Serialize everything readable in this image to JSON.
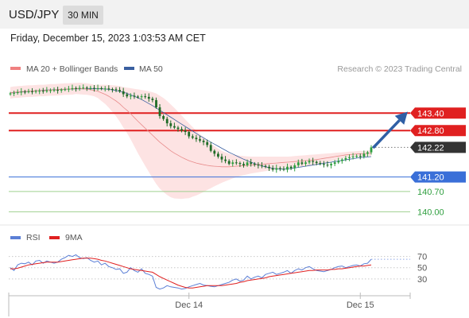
{
  "header": {
    "symbol": "USD/JPY",
    "timeframe": "30 MIN"
  },
  "datetime": "Friday, December 15, 2023 1:03:53 AM CET",
  "legend_main": [
    {
      "label": "MA 20 + Bollinger Bands",
      "color": "#f08080"
    },
    {
      "label": "MA 50",
      "color": "#3a5fa0"
    }
  ],
  "copyright": "Research © 2023 Trading Central",
  "legend_rsi": [
    {
      "label": "RSI",
      "color": "#5b7fd6"
    },
    {
      "label": "9MA",
      "color": "#e02020"
    }
  ],
  "colors": {
    "up": "#2e9e3e",
    "down": "#1e6b26",
    "resistance": "#e02020",
    "support": "#3a6fd8",
    "target": "#2e9e3e",
    "arrow": "#2f5fa5",
    "current": "#333333"
  },
  "chart_data": {
    "type": "candlestick",
    "ylim": [
      139.9,
      144.45
    ],
    "n_bars": 100,
    "x_ticks": [
      {
        "label": "Dec 14",
        "bar": 49
      },
      {
        "label": "Dec 15",
        "bar": 96
      }
    ],
    "levels": [
      {
        "value": 143.4,
        "label": "143.40",
        "kind": "resistance"
      },
      {
        "value": 142.8,
        "label": "142.80",
        "kind": "resistance"
      },
      {
        "value": 142.22,
        "label": "142.22",
        "kind": "current"
      },
      {
        "value": 141.2,
        "label": "141.20",
        "kind": "support"
      },
      {
        "value": 140.7,
        "label": "140.70",
        "kind": "target"
      },
      {
        "value": 140.0,
        "label": "140.00",
        "kind": "target"
      }
    ],
    "arrow": {
      "from": [
        99.5,
        142.2
      ],
      "to": [
        109,
        143.45
      ]
    },
    "close": [
      144.08,
      144.1,
      144.12,
      144.14,
      144.13,
      144.15,
      144.14,
      144.16,
      144.17,
      144.15,
      144.18,
      144.19,
      144.2,
      144.18,
      144.21,
      144.22,
      144.24,
      144.26,
      144.25,
      144.27,
      144.28,
      144.26,
      144.27,
      144.25,
      144.26,
      144.24,
      144.25,
      144.23,
      144.22,
      144.2,
      144.15,
      144.05,
      143.98,
      144.0,
      143.97,
      143.95,
      143.98,
      143.96,
      143.9,
      143.85,
      143.6,
      143.3,
      143.2,
      143.05,
      142.95,
      142.9,
      142.85,
      142.8,
      142.75,
      142.6,
      142.55,
      142.5,
      142.45,
      142.4,
      142.3,
      142.1,
      142.0,
      141.9,
      141.8,
      141.75,
      141.65,
      141.7,
      141.68,
      141.65,
      141.6,
      141.7,
      141.65,
      141.62,
      141.6,
      141.58,
      141.55,
      141.5,
      141.45,
      141.5,
      141.48,
      141.45,
      141.55,
      141.5,
      141.6,
      141.7,
      141.65,
      141.7,
      141.75,
      141.72,
      141.68,
      141.65,
      141.62,
      141.6,
      141.65,
      141.7,
      141.75,
      141.8,
      141.85,
      141.88,
      141.9,
      141.92,
      141.9,
      142.0,
      142.05,
      142.22
    ],
    "ma20": [
      144.1,
      144.12,
      144.13,
      144.14,
      144.15,
      144.16,
      144.16,
      144.17,
      144.18,
      144.18,
      144.19,
      144.2,
      144.2,
      144.21,
      144.22,
      144.23,
      144.23,
      144.24,
      144.25,
      144.25,
      144.24,
      144.23,
      144.21,
      144.18,
      144.15,
      144.1,
      144.05,
      143.98,
      143.9,
      143.82,
      143.72,
      143.6,
      143.5,
      143.38,
      143.25,
      143.12,
      143.0,
      142.88,
      142.76,
      142.64,
      142.52,
      142.4,
      142.3,
      142.2,
      142.1,
      142.02,
      141.95,
      141.88,
      141.82,
      141.76,
      141.72,
      141.68,
      141.65,
      141.62,
      141.6,
      141.58,
      141.57,
      141.56,
      141.55,
      141.55,
      141.55,
      141.56,
      141.57,
      141.58,
      141.59,
      141.6,
      141.61,
      141.62,
      141.63,
      141.64,
      141.65,
      141.66,
      141.67,
      141.68,
      141.69,
      141.7,
      141.71,
      141.72,
      141.73,
      141.74,
      141.75,
      141.76,
      141.77,
      141.78,
      141.8,
      141.82,
      141.84,
      141.86,
      141.88,
      141.9,
      141.92,
      141.94,
      141.96,
      141.97,
      141.98,
      141.99,
      142.0,
      142.0,
      142.01,
      142.02
    ],
    "bb_upper": [
      144.3,
      144.32,
      144.33,
      144.34,
      144.35,
      144.36,
      144.36,
      144.37,
      144.38,
      144.38,
      144.39,
      144.4,
      144.4,
      144.41,
      144.42,
      144.43,
      144.43,
      144.44,
      144.44,
      144.45,
      144.44,
      144.43,
      144.41,
      144.38,
      144.38,
      144.38,
      144.38,
      144.37,
      144.36,
      144.35,
      144.33,
      144.3,
      144.28,
      144.26,
      144.24,
      144.22,
      144.2,
      144.18,
      144.15,
      144.12,
      144.08,
      144.0,
      143.92,
      143.82,
      143.7,
      143.58,
      143.45,
      143.32,
      143.18,
      143.05,
      142.92,
      142.8,
      142.68,
      142.56,
      142.45,
      142.35,
      142.26,
      142.18,
      142.1,
      142.05,
      142.0,
      141.97,
      141.95,
      141.93,
      141.92,
      141.91,
      141.9,
      141.9,
      141.9,
      141.9,
      141.9,
      141.9,
      141.9,
      141.9,
      141.9,
      141.9,
      141.9,
      141.91,
      141.92,
      141.93,
      141.94,
      141.95,
      141.96,
      141.97,
      141.98,
      141.99,
      142.0,
      142.01,
      142.02,
      142.03,
      142.04,
      142.05,
      142.06,
      142.07,
      142.08,
      142.09,
      142.1,
      142.1,
      142.11,
      142.12
    ],
    "bb_lower": [
      143.9,
      143.92,
      143.93,
      143.94,
      143.95,
      143.96,
      143.96,
      143.97,
      143.98,
      143.98,
      143.99,
      144.0,
      144.0,
      144.01,
      144.02,
      144.03,
      144.03,
      144.04,
      144.06,
      144.05,
      144.04,
      144.03,
      144.01,
      143.98,
      143.92,
      143.82,
      143.72,
      143.59,
      143.44,
      143.29,
      143.11,
      142.9,
      142.72,
      142.5,
      142.26,
      142.02,
      141.8,
      141.58,
      141.37,
      141.16,
      140.96,
      140.8,
      140.68,
      140.58,
      140.5,
      140.46,
      140.45,
      140.44,
      140.46,
      140.47,
      140.52,
      140.56,
      140.62,
      140.68,
      140.75,
      140.81,
      140.88,
      140.94,
      141.0,
      141.05,
      141.1,
      141.15,
      141.19,
      141.23,
      141.26,
      141.29,
      141.32,
      141.34,
      141.36,
      141.38,
      141.4,
      141.42,
      141.44,
      141.46,
      141.48,
      141.5,
      141.52,
      141.53,
      141.54,
      141.55,
      141.56,
      141.57,
      141.58,
      141.59,
      141.62,
      141.65,
      141.68,
      141.71,
      141.74,
      141.77,
      141.8,
      141.83,
      141.86,
      141.87,
      141.88,
      141.89,
      141.9,
      141.9,
      141.91,
      141.92
    ],
    "ma50": [
      144.1,
      144.11,
      144.12,
      144.13,
      144.14,
      144.15,
      144.16,
      144.17,
      144.18,
      144.19,
      144.2,
      144.2,
      144.21,
      144.21,
      144.22,
      144.22,
      144.23,
      144.23,
      144.24,
      144.24,
      144.24,
      144.24,
      144.24,
      144.24,
      144.24,
      144.24,
      144.23,
      144.22,
      144.2,
      144.18,
      144.15,
      144.12,
      144.08,
      144.03,
      143.98,
      143.93,
      143.87,
      143.8,
      143.73,
      143.66,
      143.58,
      143.5,
      143.42,
      143.34,
      143.26,
      143.18,
      143.1,
      143.02,
      142.94,
      142.86,
      142.78,
      142.7,
      142.62,
      142.55,
      142.47,
      142.4,
      142.33,
      142.26,
      142.19,
      142.12,
      142.05,
      141.99,
      141.93,
      141.87,
      141.81,
      141.76,
      141.71,
      141.66,
      141.62,
      141.58,
      141.55,
      141.52,
      141.5,
      141.48,
      141.47,
      141.47,
      141.48,
      141.49,
      141.51,
      141.53,
      141.55,
      141.57,
      141.59,
      141.61,
      141.63,
      141.65,
      141.67,
      141.69,
      141.71,
      141.73,
      141.75,
      141.77,
      141.79,
      141.81,
      141.83,
      141.85,
      141.87,
      141.88,
      141.89,
      141.9
    ],
    "rsi": {
      "ylim": [
        10,
        85
      ],
      "levels": [
        70,
        50,
        30
      ],
      "rsi": [
        50,
        45,
        55,
        58,
        57,
        60,
        55,
        62,
        63,
        58,
        62,
        60,
        58,
        60,
        65,
        68,
        72,
        70,
        73,
        68,
        66,
        68,
        63,
        60,
        62,
        55,
        58,
        52,
        50,
        47,
        48,
        40,
        42,
        50,
        45,
        42,
        48,
        40,
        38,
        35,
        15,
        12,
        14,
        18,
        16,
        15,
        14,
        12,
        13,
        16,
        18,
        20,
        22,
        19,
        18,
        17,
        16,
        18,
        20,
        22,
        24,
        28,
        30,
        26,
        28,
        35,
        30,
        33,
        35,
        32,
        38,
        40,
        42,
        38,
        40,
        42,
        45,
        40,
        45,
        48,
        46,
        50,
        52,
        48,
        45,
        44,
        43,
        45,
        47,
        50,
        52,
        53,
        50,
        52,
        54,
        55,
        53,
        57,
        58,
        65
      ],
      "ma9": [
        48,
        48,
        49,
        51,
        53,
        55,
        56,
        57,
        58,
        59,
        60,
        60,
        60,
        60,
        61,
        62,
        63,
        64,
        65,
        66,
        67,
        67,
        67,
        66,
        65,
        63,
        62,
        60,
        58,
        56,
        54,
        52,
        50,
        48,
        47,
        46,
        45,
        44,
        43,
        42,
        38,
        34,
        31,
        28,
        25,
        22,
        19,
        17,
        15,
        14,
        14,
        15,
        16,
        17,
        18,
        18,
        18,
        18,
        18,
        19,
        20,
        21,
        22,
        24,
        25,
        27,
        28,
        29,
        30,
        31,
        32,
        34,
        35,
        36,
        37,
        38,
        39,
        40,
        41,
        42,
        43,
        44,
        45,
        45,
        46,
        46,
        46,
        46,
        47,
        47,
        48,
        48,
        49,
        50,
        51,
        52,
        53,
        53,
        54,
        55
      ]
    }
  }
}
